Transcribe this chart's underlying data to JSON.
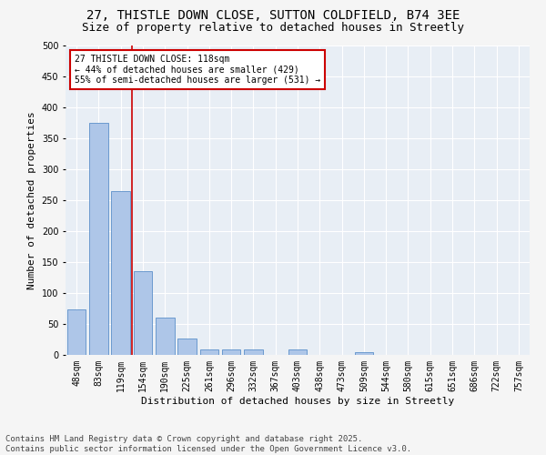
{
  "title1": "27, THISTLE DOWN CLOSE, SUTTON COLDFIELD, B74 3EE",
  "title2": "Size of property relative to detached houses in Streetly",
  "xlabel": "Distribution of detached houses by size in Streetly",
  "ylabel": "Number of detached properties",
  "categories": [
    "48sqm",
    "83sqm",
    "119sqm",
    "154sqm",
    "190sqm",
    "225sqm",
    "261sqm",
    "296sqm",
    "332sqm",
    "367sqm",
    "403sqm",
    "438sqm",
    "473sqm",
    "509sqm",
    "544sqm",
    "580sqm",
    "615sqm",
    "651sqm",
    "686sqm",
    "722sqm",
    "757sqm"
  ],
  "values": [
    73,
    375,
    265,
    135,
    60,
    27,
    9,
    9,
    9,
    0,
    9,
    0,
    0,
    4,
    0,
    0,
    0,
    0,
    0,
    0,
    0
  ],
  "bar_color": "#aec6e8",
  "bar_edge_color": "#5b8fc9",
  "vline_x_index": 2,
  "vline_color": "#cc0000",
  "annotation_text": "27 THISTLE DOWN CLOSE: 118sqm\n← 44% of detached houses are smaller (429)\n55% of semi-detached houses are larger (531) →",
  "annotation_box_color": "#ffffff",
  "annotation_box_edge_color": "#cc0000",
  "ylim": [
    0,
    500
  ],
  "yticks": [
    0,
    50,
    100,
    150,
    200,
    250,
    300,
    350,
    400,
    450,
    500
  ],
  "background_color": "#e8eef5",
  "grid_color": "#ffffff",
  "fig_bg_color": "#f5f5f5",
  "footer": "Contains HM Land Registry data © Crown copyright and database right 2025.\nContains public sector information licensed under the Open Government Licence v3.0.",
  "title_fontsize": 10,
  "subtitle_fontsize": 9,
  "axis_label_fontsize": 8,
  "tick_fontsize": 7,
  "annotation_fontsize": 7,
  "footer_fontsize": 6.5
}
